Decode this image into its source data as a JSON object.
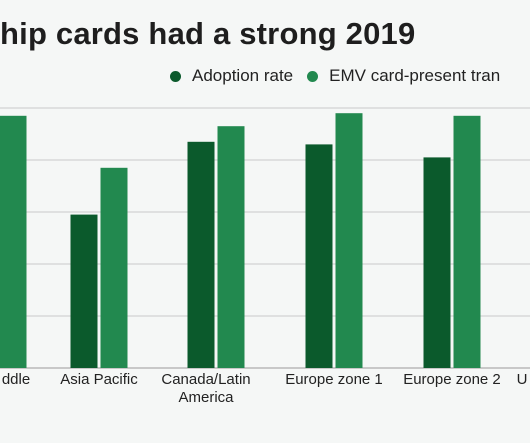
{
  "title": "hip cards had a strong 2019",
  "legend": [
    {
      "label": "Adoption rate",
      "color": "#0b5a2c"
    },
    {
      "label": "EMV card-present tran",
      "color": "#22894f"
    }
  ],
  "chart_data": {
    "type": "bar",
    "categories": [
      [
        "ddle"
      ],
      [
        "Asia Pacific"
      ],
      [
        "Canada/Latin",
        "America"
      ],
      [
        "Europe zone 1"
      ],
      [
        "Europe zone 2"
      ],
      [
        "U"
      ]
    ],
    "series": [
      {
        "name": "Adoption rate",
        "color": "#0b5a2c",
        "values": [
          null,
          59,
          87,
          86,
          81,
          null
        ]
      },
      {
        "name": "EMV card-present tran",
        "color": "#22894f",
        "values": [
          97,
          77,
          93,
          98,
          97,
          null
        ]
      }
    ],
    "ylim": [
      0,
      100
    ],
    "grid": true,
    "legend_position": "top-right"
  }
}
